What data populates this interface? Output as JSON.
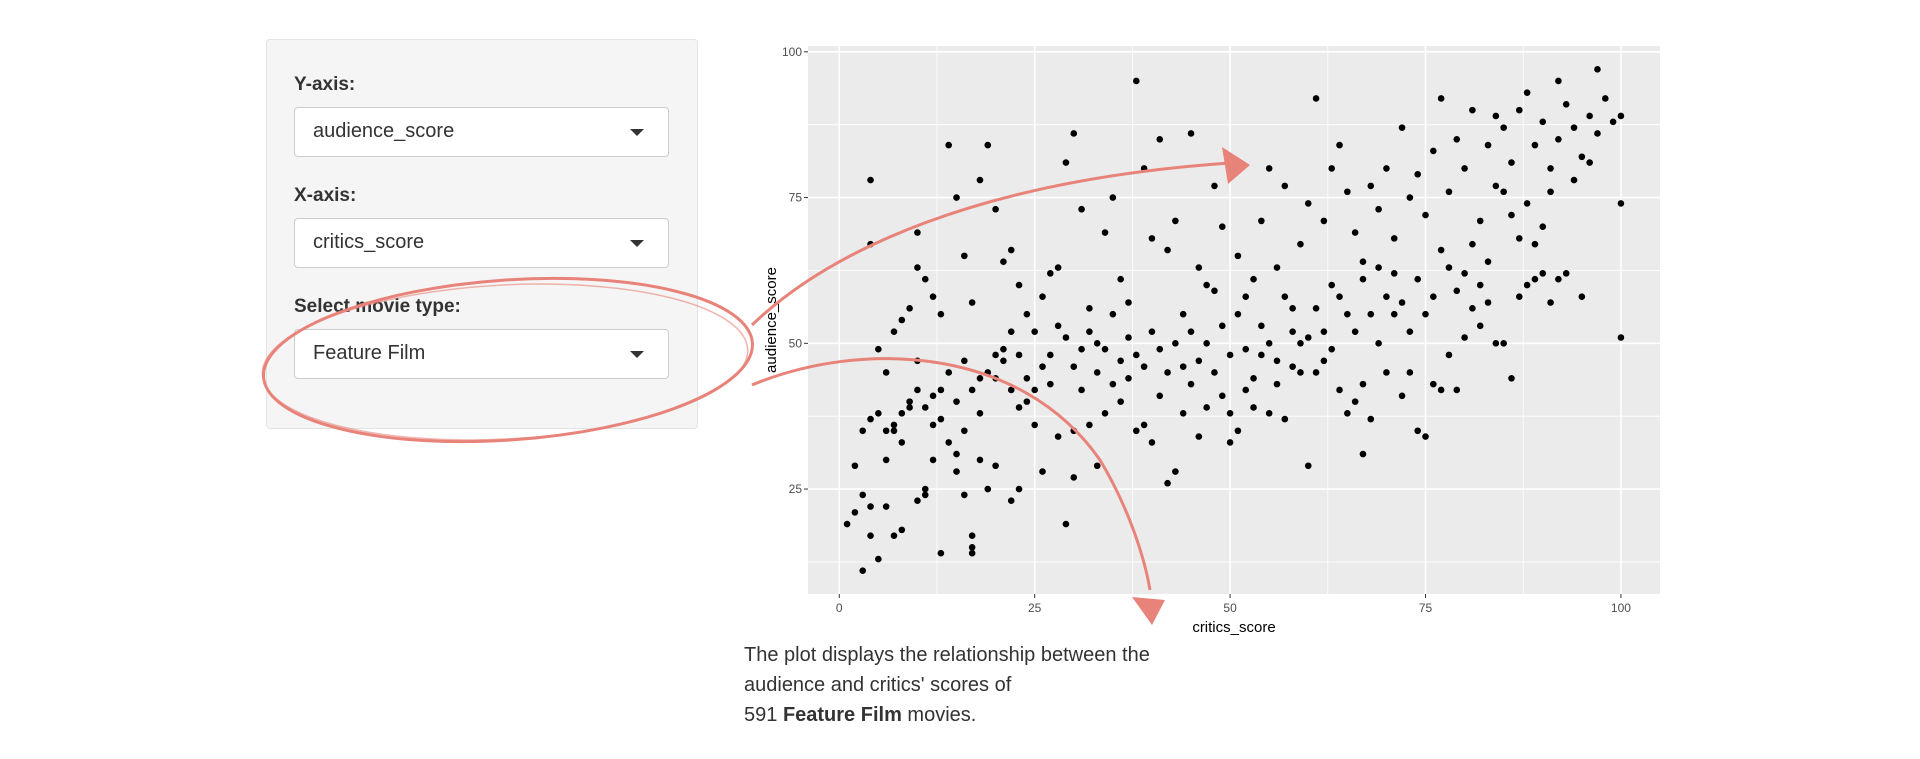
{
  "sidebar": {
    "yaxis": {
      "label": "Y-axis:",
      "value": "audience_score"
    },
    "xaxis": {
      "label": "X-axis:",
      "value": "critics_score"
    },
    "movie_type": {
      "label": "Select movie type:",
      "value": "Feature Film"
    }
  },
  "caption": {
    "line1": "The plot displays the relationship between the",
    "line2": "audience and critics' scores of",
    "count": "591",
    "type": "Feature Film",
    "suffix": " movies."
  },
  "colors": {
    "annotation": "#e8837a",
    "panel": "#ebebeb",
    "grid": "#ffffff",
    "point": "#000000"
  },
  "chart_data": {
    "type": "scatter",
    "title": "",
    "xlabel": "critics_score",
    "ylabel": "audience_score",
    "xlim": [
      -4,
      105
    ],
    "ylim": [
      7,
      101
    ],
    "xticks": [
      0,
      25,
      50,
      75,
      100
    ],
    "yticks": [
      25,
      50,
      75,
      100
    ],
    "grid": true,
    "point_count_note": "approximate subset of 591 points",
    "points": [
      [
        1,
        19
      ],
      [
        2,
        29
      ],
      [
        3,
        11
      ],
      [
        4,
        17
      ],
      [
        4,
        22
      ],
      [
        3,
        35
      ],
      [
        4,
        37
      ],
      [
        5,
        13
      ],
      [
        6,
        22
      ],
      [
        6,
        30
      ],
      [
        7,
        35
      ],
      [
        7,
        17
      ],
      [
        8,
        18
      ],
      [
        8,
        33
      ],
      [
        9,
        39
      ],
      [
        10,
        23
      ],
      [
        10,
        47
      ],
      [
        11,
        25
      ],
      [
        11,
        24
      ],
      [
        12,
        30
      ],
      [
        12,
        36
      ],
      [
        13,
        14
      ],
      [
        13,
        37
      ],
      [
        14,
        33
      ],
      [
        15,
        28
      ],
      [
        15,
        31
      ],
      [
        16,
        35
      ],
      [
        16,
        24
      ],
      [
        17,
        17
      ],
      [
        17,
        15
      ],
      [
        17,
        14
      ],
      [
        18,
        30
      ],
      [
        18,
        38
      ],
      [
        19,
        25
      ],
      [
        20,
        29
      ],
      [
        20,
        44
      ],
      [
        21,
        47
      ],
      [
        22,
        52
      ],
      [
        22,
        23
      ],
      [
        23,
        25
      ],
      [
        23,
        39
      ],
      [
        24,
        40
      ],
      [
        25,
        36
      ],
      [
        26,
        28
      ],
      [
        27,
        43
      ],
      [
        28,
        34
      ],
      [
        29,
        19
      ],
      [
        30,
        27
      ],
      [
        30,
        35
      ],
      [
        31,
        42
      ],
      [
        32,
        36
      ],
      [
        33,
        29
      ],
      [
        34,
        38
      ],
      [
        35,
        43
      ],
      [
        36,
        40
      ],
      [
        37,
        44
      ],
      [
        38,
        35
      ],
      [
        39,
        36
      ],
      [
        40,
        33
      ],
      [
        41,
        41
      ],
      [
        42,
        26
      ],
      [
        43,
        28
      ],
      [
        44,
        38
      ],
      [
        45,
        43
      ],
      [
        46,
        34
      ],
      [
        47,
        39
      ],
      [
        48,
        45
      ],
      [
        49,
        41
      ],
      [
        50,
        33
      ],
      [
        50,
        38
      ],
      [
        51,
        35
      ],
      [
        52,
        42
      ],
      [
        53,
        39
      ],
      [
        54,
        48
      ],
      [
        55,
        38
      ],
      [
        56,
        43
      ],
      [
        57,
        37
      ],
      [
        58,
        46
      ],
      [
        59,
        50
      ],
      [
        60,
        29
      ],
      [
        61,
        45
      ],
      [
        62,
        52
      ],
      [
        63,
        49
      ],
      [
        64,
        42
      ],
      [
        65,
        38
      ],
      [
        66,
        40
      ],
      [
        67,
        43
      ],
      [
        67,
        31
      ],
      [
        68,
        37
      ],
      [
        69,
        50
      ],
      [
        70,
        45
      ],
      [
        71,
        55
      ],
      [
        72,
        41
      ],
      [
        73,
        45
      ],
      [
        74,
        35
      ],
      [
        75,
        34
      ],
      [
        76,
        43
      ],
      [
        77,
        42
      ],
      [
        78,
        48
      ],
      [
        79,
        42
      ],
      [
        80,
        51
      ],
      [
        81,
        56
      ],
      [
        82,
        53
      ],
      [
        83,
        57
      ],
      [
        84,
        50
      ],
      [
        85,
        50
      ],
      [
        86,
        44
      ],
      [
        87,
        58
      ],
      [
        88,
        60
      ],
      [
        89,
        61
      ],
      [
        90,
        62
      ],
      [
        91,
        57
      ],
      [
        92,
        61
      ],
      [
        93,
        62
      ],
      [
        95,
        58
      ],
      [
        100,
        51
      ],
      [
        4,
        78
      ],
      [
        4,
        67
      ],
      [
        6,
        45
      ],
      [
        7,
        52
      ],
      [
        8,
        54
      ],
      [
        9,
        56
      ],
      [
        10,
        63
      ],
      [
        10,
        69
      ],
      [
        11,
        61
      ],
      [
        12,
        58
      ],
      [
        13,
        55
      ],
      [
        14,
        84
      ],
      [
        15,
        75
      ],
      [
        16,
        65
      ],
      [
        17,
        57
      ],
      [
        18,
        78
      ],
      [
        19,
        84
      ],
      [
        20,
        73
      ],
      [
        21,
        64
      ],
      [
        22,
        66
      ],
      [
        23,
        60
      ],
      [
        24,
        55
      ],
      [
        25,
        52
      ],
      [
        26,
        58
      ],
      [
        27,
        62
      ],
      [
        28,
        63
      ],
      [
        29,
        81
      ],
      [
        30,
        86
      ],
      [
        31,
        73
      ],
      [
        32,
        56
      ],
      [
        33,
        50
      ],
      [
        34,
        69
      ],
      [
        35,
        75
      ],
      [
        36,
        61
      ],
      [
        37,
        57
      ],
      [
        38,
        95
      ],
      [
        39,
        80
      ],
      [
        40,
        68
      ],
      [
        41,
        85
      ],
      [
        42,
        66
      ],
      [
        43,
        71
      ],
      [
        44,
        55
      ],
      [
        45,
        86
      ],
      [
        46,
        63
      ],
      [
        47,
        60
      ],
      [
        48,
        77
      ],
      [
        49,
        70
      ],
      [
        50,
        81
      ],
      [
        51,
        65
      ],
      [
        52,
        58
      ],
      [
        53,
        61
      ],
      [
        54,
        71
      ],
      [
        55,
        80
      ],
      [
        56,
        63
      ],
      [
        57,
        77
      ],
      [
        58,
        56
      ],
      [
        59,
        67
      ],
      [
        60,
        74
      ],
      [
        61,
        92
      ],
      [
        62,
        71
      ],
      [
        63,
        80
      ],
      [
        64,
        84
      ],
      [
        65,
        76
      ],
      [
        66,
        69
      ],
      [
        67,
        64
      ],
      [
        68,
        77
      ],
      [
        69,
        73
      ],
      [
        70,
        80
      ],
      [
        71,
        68
      ],
      [
        72,
        87
      ],
      [
        73,
        75
      ],
      [
        74,
        79
      ],
      [
        75,
        72
      ],
      [
        76,
        83
      ],
      [
        77,
        92
      ],
      [
        78,
        76
      ],
      [
        79,
        85
      ],
      [
        80,
        80
      ],
      [
        81,
        90
      ],
      [
        82,
        71
      ],
      [
        83,
        84
      ],
      [
        84,
        89
      ],
      [
        85,
        76
      ],
      [
        86,
        81
      ],
      [
        87,
        90
      ],
      [
        88,
        93
      ],
      [
        89,
        84
      ],
      [
        90,
        88
      ],
      [
        91,
        80
      ],
      [
        92,
        85
      ],
      [
        93,
        91
      ],
      [
        94,
        87
      ],
      [
        95,
        82
      ],
      [
        96,
        89
      ],
      [
        97,
        86
      ],
      [
        98,
        92
      ],
      [
        99,
        88
      ],
      [
        100,
        89
      ],
      [
        100,
        74
      ],
      [
        97,
        97
      ],
      [
        96,
        81
      ],
      [
        94,
        78
      ],
      [
        92,
        95
      ],
      [
        91,
        76
      ],
      [
        90,
        70
      ],
      [
        89,
        67
      ],
      [
        88,
        74
      ],
      [
        87,
        68
      ],
      [
        86,
        72
      ],
      [
        85,
        87
      ],
      [
        84,
        77
      ],
      [
        83,
        64
      ],
      [
        82,
        60
      ],
      [
        81,
        67
      ],
      [
        80,
        62
      ],
      [
        79,
        59
      ],
      [
        78,
        63
      ],
      [
        77,
        66
      ],
      [
        76,
        58
      ],
      [
        75,
        55
      ],
      [
        74,
        61
      ],
      [
        73,
        52
      ],
      [
        72,
        57
      ],
      [
        71,
        62
      ],
      [
        70,
        58
      ],
      [
        69,
        63
      ],
      [
        68,
        55
      ],
      [
        67,
        61
      ],
      [
        66,
        52
      ],
      [
        65,
        55
      ],
      [
        64,
        58
      ],
      [
        63,
        60
      ],
      [
        62,
        47
      ],
      [
        61,
        56
      ],
      [
        60,
        51
      ],
      [
        59,
        45
      ],
      [
        58,
        52
      ],
      [
        57,
        58
      ],
      [
        56,
        47
      ],
      [
        55,
        50
      ],
      [
        54,
        53
      ],
      [
        53,
        44
      ],
      [
        52,
        49
      ],
      [
        51,
        55
      ],
      [
        50,
        48
      ],
      [
        49,
        53
      ],
      [
        48,
        59
      ],
      [
        47,
        50
      ],
      [
        46,
        47
      ],
      [
        45,
        52
      ],
      [
        44,
        46
      ],
      [
        43,
        50
      ],
      [
        42,
        45
      ],
      [
        41,
        49
      ],
      [
        40,
        52
      ],
      [
        39,
        46
      ],
      [
        38,
        48
      ],
      [
        37,
        51
      ],
      [
        36,
        47
      ],
      [
        35,
        55
      ],
      [
        34,
        49
      ],
      [
        33,
        45
      ],
      [
        32,
        52
      ],
      [
        31,
        49
      ],
      [
        30,
        46
      ],
      [
        29,
        51
      ],
      [
        28,
        53
      ],
      [
        27,
        48
      ],
      [
        26,
        46
      ],
      [
        25,
        42
      ],
      [
        24,
        44
      ],
      [
        23,
        48
      ],
      [
        22,
        42
      ],
      [
        21,
        49
      ],
      [
        20,
        48
      ],
      [
        19,
        45
      ],
      [
        18,
        44
      ],
      [
        17,
        42
      ],
      [
        16,
        47
      ],
      [
        15,
        40
      ],
      [
        14,
        45
      ],
      [
        13,
        42
      ],
      [
        12,
        41
      ],
      [
        11,
        39
      ],
      [
        10,
        42
      ],
      [
        9,
        40
      ],
      [
        8,
        38
      ],
      [
        7,
        36
      ],
      [
        6,
        35
      ],
      [
        5,
        38
      ],
      [
        5,
        49
      ],
      [
        3,
        24
      ],
      [
        2,
        21
      ]
    ]
  }
}
